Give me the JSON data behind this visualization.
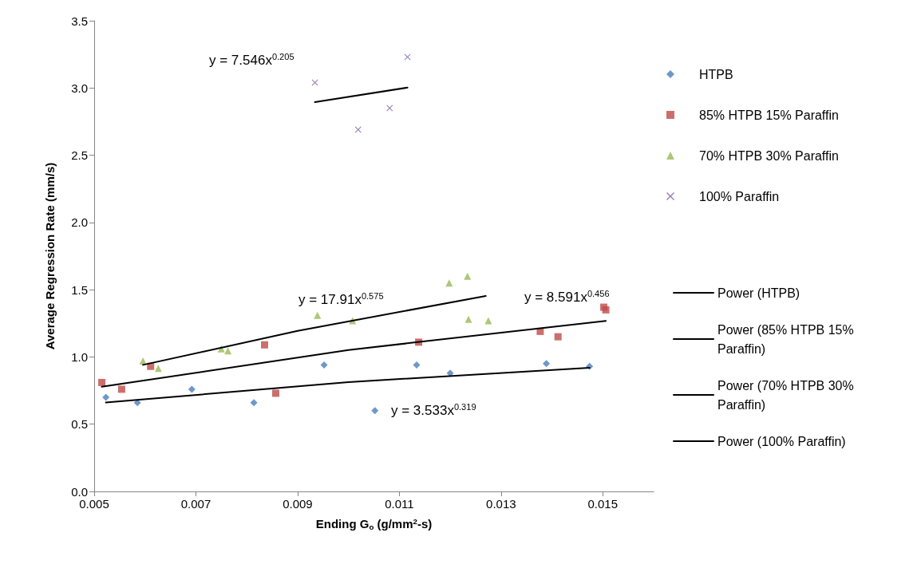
{
  "chart_data": {
    "type": "scatter",
    "xlabel": "Ending G$_{o}$ (g/mm$^{2}$-s)",
    "ylabel": "Average Regression Rate (mm/s)",
    "xlim": [
      0.005,
      0.016
    ],
    "xticks": [
      0.005,
      0.007,
      0.009,
      0.011,
      0.013,
      0.015
    ],
    "ylim": [
      0,
      3.5
    ],
    "yticks": [
      {
        "value": 0,
        "label": "0.0"
      },
      0.5,
      {
        "value": 1,
        "label": "1.0"
      },
      1.5,
      {
        "value": 2,
        "label": "2.0"
      },
      2.5,
      {
        "value": 3,
        "label": "3.0"
      },
      3.5
    ],
    "grid": false,
    "legend": "right",
    "series": [
      {
        "name": "HTPB",
        "color": "#4a7ebb",
        "marker": "diamond",
        "x": [
          0.00523,
          0.00585,
          0.00692,
          0.00814,
          0.00952,
          0.01052,
          0.01134,
          0.012,
          0.01389,
          0.01474
        ],
        "values": [
          0.7,
          0.66,
          0.76,
          0.66,
          0.94,
          0.6,
          0.94,
          0.88,
          0.95,
          0.93
        ]
      },
      {
        "name": "85% HTPB 15% Paraffin",
        "color": "#be4b48",
        "marker": "square",
        "x": [
          0.00515,
          0.00554,
          0.00611,
          0.00835,
          0.00857,
          0.01138,
          0.01377,
          0.01412,
          0.01502,
          0.01506
        ],
        "values": [
          0.81,
          0.76,
          0.93,
          1.09,
          0.73,
          1.11,
          1.19,
          1.15,
          1.37,
          1.35
        ]
      },
      {
        "name": "70% HTPB 30% Paraffin",
        "color": "#98b954",
        "marker": "triangle",
        "x": [
          0.00596,
          0.00626,
          0.0075,
          0.00763,
          0.00939,
          0.01008,
          0.01198,
          0.01234,
          0.01236,
          0.01275
        ],
        "values": [
          0.97,
          0.915,
          1.06,
          1.045,
          1.31,
          1.27,
          1.55,
          1.6,
          1.28,
          1.27
        ]
      },
      {
        "name": "100% Paraffin",
        "color": "#7d60a0",
        "marker": "cross",
        "x": [
          0.00934,
          0.01019,
          0.01081,
          0.01116
        ],
        "values": [
          3.04,
          2.69,
          2.85,
          3.23
        ]
      },
      {
        "name": "Power (HTPB)",
        "type": "line",
        "color": "#000000",
        "marker": "none",
        "x": [
          0.00523,
          0.01,
          0.01474
        ],
        "values": [
          0.661,
          0.813,
          0.92
        ]
      },
      {
        "name": "Power (85% HTPB 15% Paraffin)",
        "type": "line",
        "color": "#000000",
        "marker": "none",
        "x": [
          0.00515,
          0.01,
          0.01506
        ],
        "values": [
          0.778,
          1.052,
          1.268
        ]
      },
      {
        "name": "Power (70% HTPB 30% Paraffin)",
        "type": "line",
        "color": "#000000",
        "marker": "none",
        "x": [
          0.00596,
          0.009,
          0.0127
        ],
        "values": [
          0.941,
          1.194,
          1.454
        ]
      },
      {
        "name": "Power (100% Paraffin)",
        "type": "line",
        "color": "#000000",
        "marker": "none",
        "x": [
          0.00934,
          0.01116
        ],
        "values": [
          2.895,
          3.003
        ]
      }
    ],
    "annotations": [
      "y = 7.546x$^{0.205}$",
      "y = 17.91x$^{0.575}$",
      "y = 8.591x$^{0.456}$",
      "y = 3.533x$^{0.319}$"
    ]
  }
}
